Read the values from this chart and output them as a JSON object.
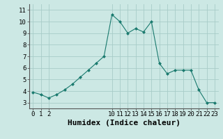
{
  "x": [
    0,
    1,
    2,
    3,
    4,
    5,
    6,
    7,
    8,
    9,
    10,
    11,
    12,
    13,
    14,
    15,
    16,
    17,
    18,
    19,
    20,
    21,
    22,
    23
  ],
  "y": [
    3.9,
    3.7,
    3.4,
    3.7,
    4.1,
    4.6,
    5.2,
    5.8,
    6.4,
    7.0,
    10.6,
    10.0,
    9.0,
    9.4,
    9.1,
    10.0,
    6.4,
    5.5,
    5.8,
    5.8,
    5.8,
    4.1,
    3.0,
    3.0
  ],
  "line_color": "#1a7a6e",
  "marker": "D",
  "marker_size": 2,
  "bg_color": "#cce8e4",
  "grid_color": "#a8ccc8",
  "xlabel": "Humidex (Indice chaleur)",
  "xlim": [
    -0.5,
    23.5
  ],
  "ylim": [
    2.5,
    11.5
  ],
  "yticks": [
    3,
    4,
    5,
    6,
    7,
    8,
    9,
    10,
    11
  ],
  "xticks": [
    0,
    1,
    2,
    10,
    11,
    12,
    13,
    14,
    15,
    16,
    17,
    18,
    19,
    20,
    21,
    22,
    23
  ],
  "xlabel_fontsize": 8,
  "tick_fontsize": 6.5,
  "linewidth": 0.8
}
